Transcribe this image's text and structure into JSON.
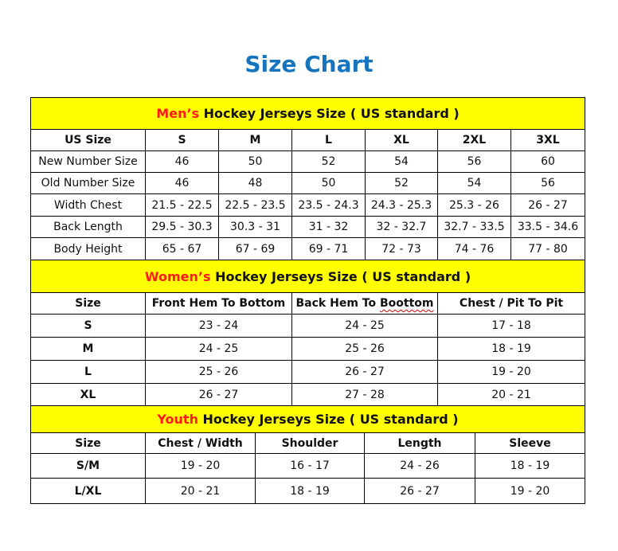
{
  "title": "Size Chart",
  "colors": {
    "title": "#1674bf",
    "header_bg": "#ffff00",
    "accent_red": "#ff1a1a"
  },
  "men": {
    "heading_prefix": "Men’s",
    "heading_rest": " Hockey Jerseys Size ( US standard )",
    "columns": [
      "US Size",
      "S",
      "M",
      "L",
      "XL",
      "2XL",
      "3XL"
    ],
    "rows": [
      [
        "New Number Size",
        "46",
        "50",
        "52",
        "54",
        "56",
        "60"
      ],
      [
        "Old Number Size",
        "46",
        "48",
        "50",
        "52",
        "54",
        "56"
      ],
      [
        "Width Chest",
        "21.5 - 22.5",
        "22.5 - 23.5",
        "23.5 - 24.3",
        "24.3 - 25.3",
        "25.3 - 26",
        "26 - 27"
      ],
      [
        "Back Length",
        "29.5 - 30.3",
        "30.3 - 31",
        "31 - 32",
        "32 - 32.7",
        "32.7 - 33.5",
        "33.5 - 34.6"
      ],
      [
        "Body Height",
        "65 - 67",
        "67 - 69",
        "69 - 71",
        "72 - 73",
        "74 - 76",
        "77 - 80"
      ]
    ]
  },
  "women": {
    "heading_prefix": "Women’s",
    "heading_rest": " Hockey Jerseys Size ( US standard )",
    "columns": [
      "Size",
      "Front Hem To Bottom",
      "Back Hem To Boottom",
      "Chest / Pit To Pit"
    ],
    "rows": [
      [
        "S",
        "23 - 24",
        "24 - 25",
        "17 - 18"
      ],
      [
        "M",
        "24 - 25",
        "25 - 26",
        "18 - 19"
      ],
      [
        "L",
        "25 - 26",
        "26 - 27",
        "19 - 20"
      ],
      [
        "XL",
        "26 - 27",
        "27 - 28",
        "20 - 21"
      ]
    ]
  },
  "youth": {
    "heading_prefix": "Youth",
    "heading_rest": " Hockey Jerseys Size ( US standard )",
    "columns": [
      "Size",
      "Chest / Width",
      "Shoulder",
      "Length",
      "Sleeve"
    ],
    "rows": [
      [
        "S/M",
        "19 - 20",
        "16 - 17",
        "24 - 26",
        "18 - 19"
      ],
      [
        "L/XL",
        "20 - 21",
        "18 - 19",
        "26 - 27",
        "19 - 20"
      ]
    ]
  }
}
